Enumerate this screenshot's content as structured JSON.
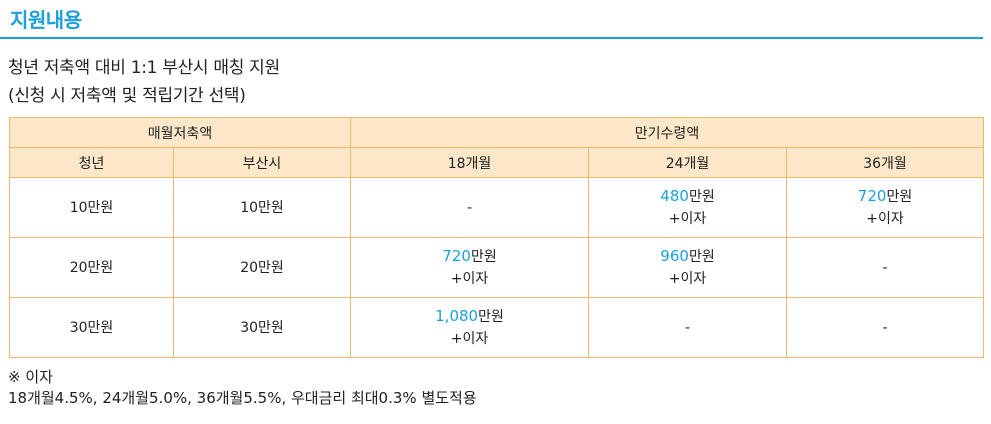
{
  "section_title": "지원내용",
  "subtitle_line1": "청년 저축액 대비 1:1 부산시 매칭 지원",
  "subtitle_line2": "(신청 시 저축액 및 적립기간 선택)",
  "table": {
    "group_headers": [
      "매월저축액",
      "만기수령액"
    ],
    "sub_headers": [
      "청년",
      "부산시",
      "18개월",
      "24개월",
      "36개월"
    ],
    "rows": [
      {
        "youth": "10만원",
        "busan": "10만원",
        "m18": {
          "amount": "",
          "unit": "",
          "interest": "",
          "dash": "-"
        },
        "m24": {
          "amount": "480",
          "unit": "만원",
          "interest": "+이자",
          "dash": ""
        },
        "m36": {
          "amount": "720",
          "unit": "만원",
          "interest": "+이자",
          "dash": ""
        }
      },
      {
        "youth": "20만원",
        "busan": "20만원",
        "m18": {
          "amount": "720",
          "unit": "만원",
          "interest": "+이자",
          "dash": ""
        },
        "m24": {
          "amount": "960",
          "unit": "만원",
          "interest": "+이자",
          "dash": ""
        },
        "m36": {
          "amount": "",
          "unit": "",
          "interest": "",
          "dash": "-"
        }
      },
      {
        "youth": "30만원",
        "busan": "30만원",
        "m18": {
          "amount": "1,080",
          "unit": "만원",
          "interest": "+이자",
          "dash": ""
        },
        "m24": {
          "amount": "",
          "unit": "",
          "interest": "",
          "dash": "-"
        },
        "m36": {
          "amount": "",
          "unit": "",
          "interest": "",
          "dash": "-"
        }
      }
    ]
  },
  "note_title": "※ 이자",
  "note_text": "18개월4.5%, 24개월5.0%, 36개월5.5%, 우대금리 최대0.3% 별도적용",
  "colors": {
    "accent": "#1aa0dc",
    "header_bg": "#fce8c9",
    "border": "#f0b869"
  }
}
